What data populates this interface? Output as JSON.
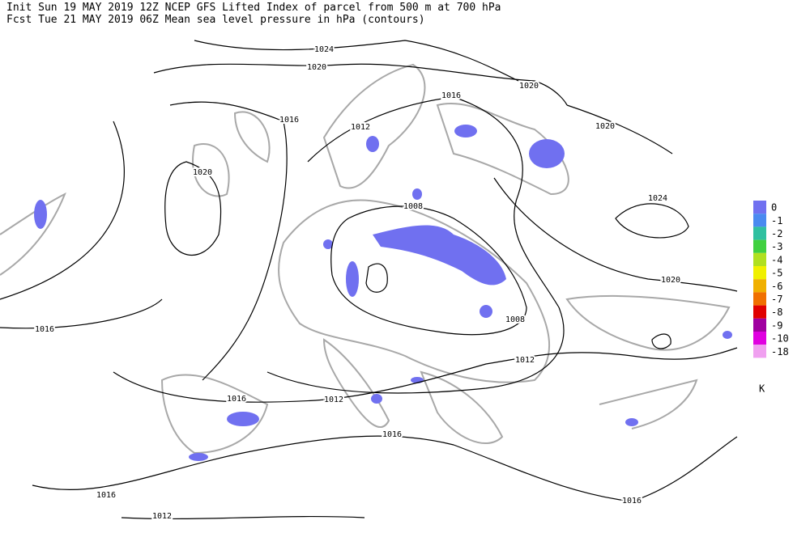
{
  "header": {
    "line1": "Init  Sun 19 MAY 2019 12Z  NCEP GFS Lifted Index of parcel from 500 m at 700 hPa",
    "line2": "Fcst Tue 21 MAY 2019 06Z  Mean sea level pressure in hPa (contours)"
  },
  "contour_labels": [
    1024,
    1020,
    1016,
    1020,
    1016,
    1012,
    1020,
    1020,
    1024,
    1008,
    1008,
    1020,
    1012,
    1016,
    1016,
    1012,
    1016,
    1016,
    1012,
    1016
  ],
  "legend": {
    "items": [
      {
        "label": 0,
        "color": "#7070f0"
      },
      {
        "label": -1,
        "color": "#4a8af0"
      },
      {
        "label": -2,
        "color": "#30c0a0"
      },
      {
        "label": -3,
        "color": "#40d040"
      },
      {
        "label": -4,
        "color": "#b0e020"
      },
      {
        "label": -5,
        "color": "#f0f000"
      },
      {
        "label": -6,
        "color": "#f0b000"
      },
      {
        "label": -7,
        "color": "#f07000"
      },
      {
        "label": -8,
        "color": "#e00000"
      },
      {
        "label": -9,
        "color": "#a000a0"
      },
      {
        "label": -10,
        "color": "#e000e0"
      },
      {
        "label": -18,
        "color": "#f0a0f0"
      }
    ],
    "unit": "K"
  }
}
